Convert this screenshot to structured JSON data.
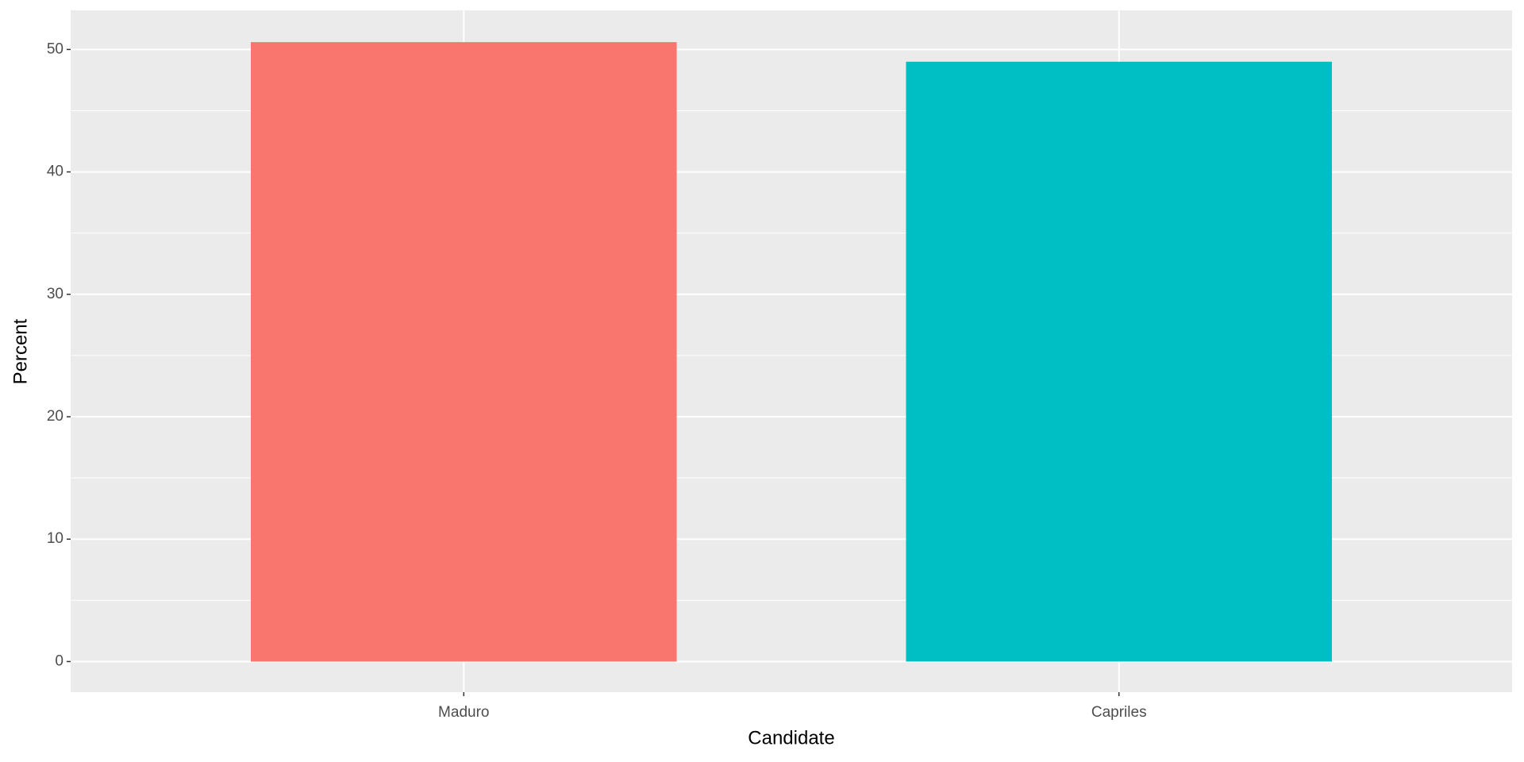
{
  "chart_data": {
    "type": "bar",
    "x_label": "Candidate",
    "y_label": "Percent",
    "categories": [
      "Maduro",
      "Capriles"
    ],
    "values": [
      50.6,
      49.0
    ],
    "colors": [
      "#f8766d",
      "#00bfc4"
    ],
    "ylim": [
      -2.5,
      53.2
    ],
    "yticks": [
      0,
      10,
      20,
      30,
      40,
      50
    ],
    "grid": true
  }
}
